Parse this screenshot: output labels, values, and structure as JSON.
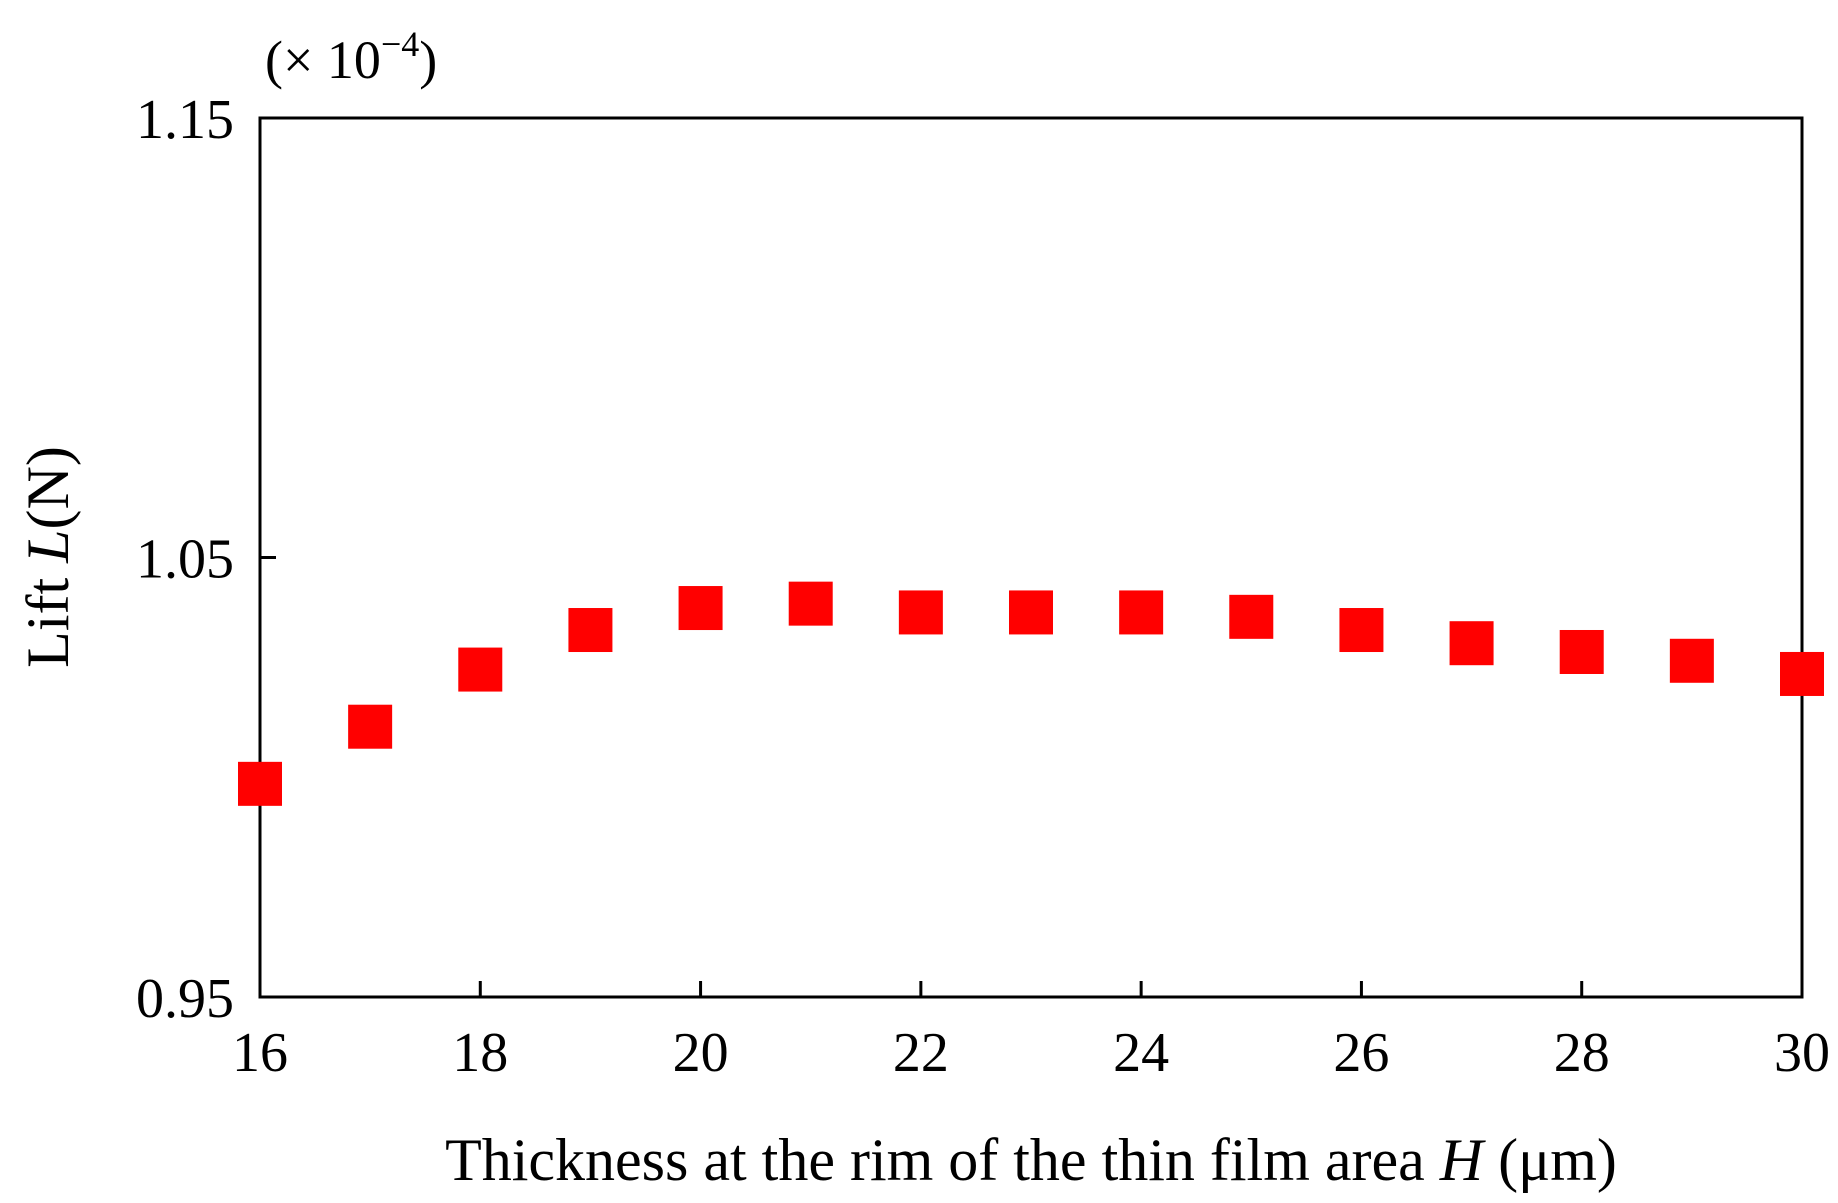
{
  "chart_data": {
    "type": "scatter",
    "x_ticks": [
      16,
      18,
      20,
      22,
      24,
      26,
      28,
      30
    ],
    "y_ticks": [
      0.95,
      1.05,
      1.15
    ],
    "y_tick_labels": [
      "0.95",
      "1.05",
      "1.15"
    ],
    "xlim": [
      16,
      30
    ],
    "ylim": [
      0.95,
      1.15
    ],
    "xlabel": {
      "prefix": "Thickness at the rim of the thin film area ",
      "var": "H",
      "unit": " (μm)"
    },
    "ylabel": {
      "prefix": "Lift ",
      "var": "L",
      "unit": "(N)"
    },
    "y_multiplier": {
      "open": "(× 10",
      "exp": "−4",
      "close": ")"
    },
    "grid": false,
    "marker_color": "#ff0000",
    "x": [
      16,
      17,
      18,
      19,
      20,
      21,
      22,
      23,
      24,
      25,
      26,
      27,
      28,
      29,
      30
    ],
    "y": [
      0.9985,
      1.0115,
      1.0245,
      1.0335,
      1.0385,
      1.0395,
      1.0375,
      1.0375,
      1.0375,
      1.0365,
      1.0335,
      1.0305,
      1.0285,
      1.0265,
      1.0235
    ]
  }
}
